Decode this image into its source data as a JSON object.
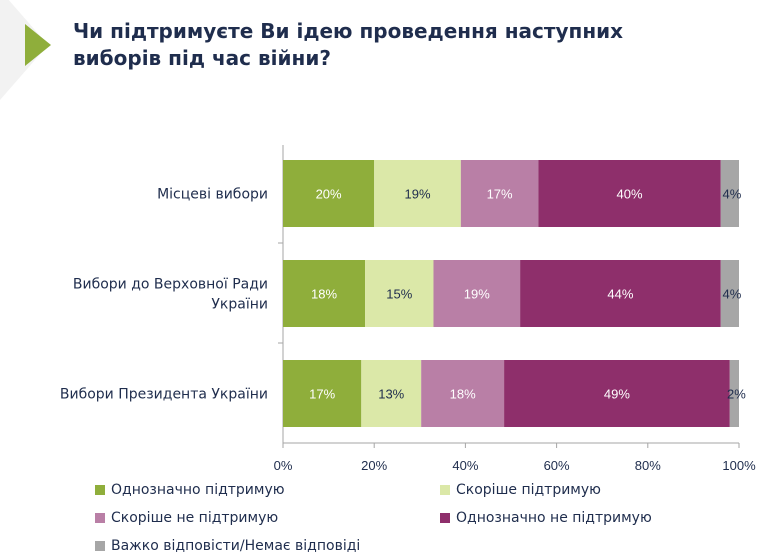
{
  "title": "Чи підтримуєте Ви ідею проведення наступних виборів під час війни?",
  "colors": [
    "#8fae3b",
    "#dbe8a8",
    "#b97fa6",
    "#8e2f6b",
    "#a6a6a6"
  ],
  "chart_data": {
    "type": "bar",
    "orientation": "horizontal-stacked-100",
    "categories": [
      "Місцеві вибори",
      "Вибори до Верховної Ради України",
      "Вибори Президента України"
    ],
    "series": [
      {
        "name": "Однозначно підтримую",
        "values": [
          20,
          18,
          17
        ]
      },
      {
        "name": "Скоріше підтримую",
        "values": [
          19,
          15,
          13
        ]
      },
      {
        "name": "Скоріше не підтримую",
        "values": [
          17,
          19,
          18
        ]
      },
      {
        "name": "Однозначно не підтримую",
        "values": [
          40,
          44,
          49
        ]
      },
      {
        "name": "Важко відповісти/Немає відповіді",
        "values": [
          4,
          4,
          2
        ]
      }
    ],
    "xticks": [
      "0%",
      "20%",
      "40%",
      "60%",
      "80%",
      "100%"
    ],
    "xlim": [
      0,
      100
    ],
    "legend_position": "bottom",
    "grid": false
  }
}
